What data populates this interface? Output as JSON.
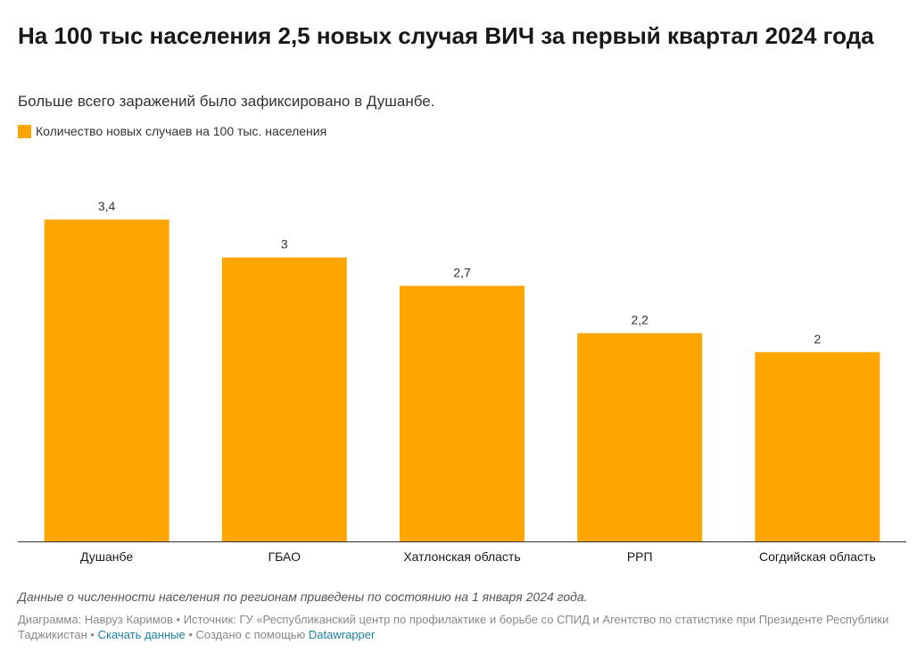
{
  "header": {
    "title": "На 100 тыс населения 2,5 новых случая ВИЧ за первый квартал 2024 года",
    "subtitle": "Больше всего заражений было зафиксировано в Душанбе."
  },
  "legend": {
    "label": "Количество новых случаев на 100 тыс. населения",
    "color": "#ffa500"
  },
  "chart_data": {
    "type": "bar",
    "title": "На 100 тыс населения 2,5 новых случая ВИЧ за первый квартал 2024 года",
    "subtitle": "Больше всего заражений было зафиксировано в Душанбе.",
    "categories": [
      "Душанбе",
      "ГБАО",
      "Хатлонская область",
      "РРП",
      "Согдийская область"
    ],
    "values": [
      3.4,
      3,
      2.7,
      2.2,
      2
    ],
    "value_labels": [
      "3,4",
      "3",
      "2,7",
      "2,2",
      "2"
    ],
    "series_name": "Количество новых случаев на 100 тыс. населения",
    "color": "#ffa500",
    "xlabel": "",
    "ylabel": "",
    "ylim": [
      0,
      3.76
    ],
    "grid": false,
    "legend_position": "top-left"
  },
  "footer": {
    "note": "Данные о численности населения по регионам приведены по состоянию на 1 января 2024 года.",
    "chart_by_prefix": "Диаграмма: Навруз Каримов",
    "separator": "•",
    "source_text": "Источник: ГУ «Республиканский центр по профилактике и борьбе со СПИД и Агентство по статистике при Президенте Республики Таджикистан",
    "download_link": "Скачать данные",
    "created_with": "Создано с помощью",
    "tool_link": "Datawrapper",
    "link_color": "#1d81a2"
  }
}
